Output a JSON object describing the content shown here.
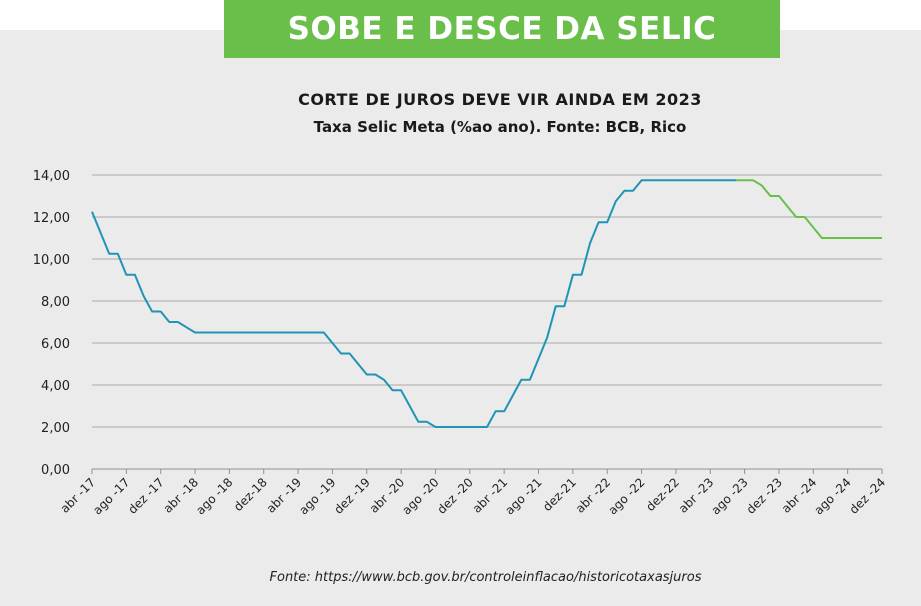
{
  "banner_title": "SOBE E DESCE DA SELIC",
  "source_note": "Fonte: https://www.bcb.gov.br/controleinflacao/historicotaxasjuros",
  "colors": {
    "banner": "#6abf4b",
    "panel": "#eaebea",
    "historical": "#1e95b5",
    "projection": "#6abf4b"
  },
  "chart_data": {
    "type": "line",
    "title": "CORTE DE JUROS DEVE VIR AINDA EM 2023",
    "subtitle": "Taxa Selic Meta (%ao ano). Fonte: BCB, Rico",
    "xlabel": "",
    "ylabel": "",
    "ylim": [
      0,
      14
    ],
    "yticks": [
      "0,00",
      "2,00",
      "4,00",
      "6,00",
      "8,00",
      "10,00",
      "12,00",
      "14,00"
    ],
    "xticks": [
      "abr -17",
      "ago -17",
      "dez -17",
      "abr -18",
      "ago -18",
      "dez-18",
      "abr -19",
      "ago -19",
      "dez -19",
      "abr -20",
      "ago -20",
      "dez -20",
      "abr -21",
      "ago -21",
      "dez-21",
      "abr -22",
      "ago -22",
      "dez-22",
      "abr -23",
      "ago -23",
      "dez -23",
      "abr -24",
      "ago -24",
      "dez -24"
    ],
    "grid": "horizontal",
    "series": [
      {
        "style": "historical",
        "points": [
          [
            "2017-04",
            12.25
          ],
          [
            "2017-05",
            11.25
          ],
          [
            "2017-06",
            10.25
          ],
          [
            "2017-07",
            10.25
          ],
          [
            "2017-08",
            9.25
          ],
          [
            "2017-09",
            9.25
          ],
          [
            "2017-10",
            8.25
          ],
          [
            "2017-11",
            7.5
          ],
          [
            "2017-12",
            7.5
          ],
          [
            "2018-01",
            7.0
          ],
          [
            "2018-02",
            7.0
          ],
          [
            "2018-03",
            6.75
          ],
          [
            "2018-04",
            6.5
          ],
          [
            "2018-05",
            6.5
          ],
          [
            "2018-06",
            6.5
          ],
          [
            "2018-12",
            6.5
          ],
          [
            "2019-06",
            6.5
          ],
          [
            "2019-07",
            6.5
          ],
          [
            "2019-08",
            6.0
          ],
          [
            "2019-09",
            5.5
          ],
          [
            "2019-10",
            5.5
          ],
          [
            "2019-11",
            5.0
          ],
          [
            "2019-12",
            4.5
          ],
          [
            "2020-01",
            4.5
          ],
          [
            "2020-02",
            4.25
          ],
          [
            "2020-03",
            3.75
          ],
          [
            "2020-04",
            3.75
          ],
          [
            "2020-05",
            3.0
          ],
          [
            "2020-06",
            2.25
          ],
          [
            "2020-07",
            2.25
          ],
          [
            "2020-08",
            2.0
          ],
          [
            "2020-09",
            2.0
          ],
          [
            "2020-12",
            2.0
          ],
          [
            "2021-02",
            2.0
          ],
          [
            "2021-03",
            2.75
          ],
          [
            "2021-04",
            2.75
          ],
          [
            "2021-05",
            3.5
          ],
          [
            "2021-06",
            4.25
          ],
          [
            "2021-07",
            4.25
          ],
          [
            "2021-08",
            5.25
          ],
          [
            "2021-09",
            6.25
          ],
          [
            "2021-10",
            7.75
          ],
          [
            "2021-11",
            7.75
          ],
          [
            "2021-12",
            9.25
          ],
          [
            "2022-01",
            9.25
          ],
          [
            "2022-02",
            10.75
          ],
          [
            "2022-03",
            11.75
          ],
          [
            "2022-04",
            11.75
          ],
          [
            "2022-05",
            12.75
          ],
          [
            "2022-06",
            13.25
          ],
          [
            "2022-07",
            13.25
          ],
          [
            "2022-08",
            13.75
          ],
          [
            "2022-09",
            13.75
          ],
          [
            "2023-07",
            13.75
          ]
        ]
      },
      {
        "style": "projection",
        "points": [
          [
            "2023-07",
            13.75
          ],
          [
            "2023-09",
            13.75
          ],
          [
            "2023-10",
            13.5
          ],
          [
            "2023-11",
            13.0
          ],
          [
            "2023-12",
            13.0
          ],
          [
            "2024-01",
            12.5
          ],
          [
            "2024-02",
            12.0
          ],
          [
            "2024-03",
            12.0
          ],
          [
            "2024-04",
            11.5
          ],
          [
            "2024-05",
            11.0
          ],
          [
            "2024-12",
            11.0
          ]
        ]
      }
    ]
  }
}
